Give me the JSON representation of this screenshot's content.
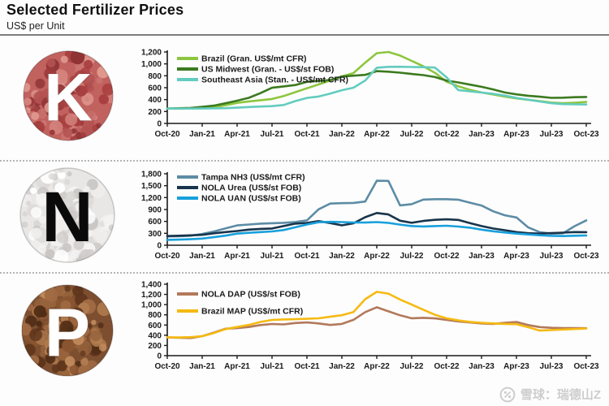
{
  "header": {
    "title": "Selected Fertilizer Prices",
    "subtitle": "US$ per Unit"
  },
  "watermark": {
    "source_text": "雪球：瑞德山Z"
  },
  "nutrients": [
    {
      "letter": "K",
      "name": "potash",
      "letter_color": "#ffffff",
      "base": "#c1625f",
      "spots": [
        "#a8403f",
        "#d4827c",
        "#b35251",
        "#e0988e",
        "#9c3a3c",
        "#cb7470",
        "#8f3335"
      ]
    },
    {
      "letter": "N",
      "name": "nitrogen",
      "letter_color": "#0a0a0a",
      "base": "#e9e7e6",
      "spots": [
        "#dcdad9",
        "#f4f3f2",
        "#cfccca",
        "#ffffff",
        "#d8d5d3",
        "#c9c5c3",
        "#efedec"
      ]
    },
    {
      "letter": "P",
      "name": "phosphate",
      "letter_color": "#ffffff",
      "base": "#7d4f30",
      "spots": [
        "#5e351b",
        "#a06a43",
        "#8a5531",
        "#c08a5c",
        "#4f2c15",
        "#96633c",
        "#b07b4e"
      ]
    }
  ],
  "chart_data": [
    {
      "type": "line",
      "panel": "K",
      "x_start": "Oct-20",
      "x_end": "Oct-23",
      "x_interval": "monthly",
      "x_tick_labels": [
        "Oct-20",
        "Jan-21",
        "Apr-21",
        "Jul-21",
        "Oct-21",
        "Jan-22",
        "Apr-22",
        "Jul-22",
        "Oct-22",
        "Jan-23",
        "Apr-23",
        "Jul-23",
        "Oct-23"
      ],
      "ylim": [
        0,
        1200
      ],
      "yticks": [
        0,
        200,
        400,
        600,
        800,
        1000,
        1200
      ],
      "grid": false,
      "legend_position": "top-left",
      "legend_y": 20,
      "legend_gap": 13,
      "series": [
        {
          "name": "Brazil (Gran. US$/mt CFR)",
          "color": "#8dc63f",
          "values": [
            250,
            248,
            250,
            255,
            270,
            305,
            345,
            370,
            390,
            410,
            460,
            525,
            590,
            655,
            720,
            790,
            845,
            1020,
            1180,
            1200,
            1140,
            1050,
            960,
            850,
            700,
            625,
            565,
            520,
            485,
            450,
            420,
            398,
            375,
            350,
            340,
            348,
            360
          ]
        },
        {
          "name": "US Midwest (Gran. - US$/st FOB)",
          "color": "#3c7a1f",
          "values": [
            250,
            255,
            260,
            278,
            298,
            338,
            382,
            430,
            508,
            598,
            622,
            645,
            698,
            714,
            728,
            788,
            802,
            815,
            878,
            868,
            852,
            830,
            812,
            778,
            718,
            688,
            652,
            615,
            572,
            520,
            488,
            465,
            448,
            430,
            432,
            440,
            445
          ]
        },
        {
          "name": "Southeast Asia (Stan. - US$/mt CFR)",
          "color": "#63ccbf",
          "values": [
            248,
            249,
            250,
            251,
            253,
            257,
            265,
            275,
            283,
            290,
            310,
            375,
            428,
            452,
            500,
            558,
            600,
            720,
            935,
            950,
            952,
            948,
            945,
            938,
            775,
            560,
            538,
            518,
            498,
            468,
            428,
            398,
            368,
            340,
            325,
            320,
            318
          ]
        }
      ]
    },
    {
      "type": "line",
      "panel": "N",
      "x_start": "Oct-20",
      "x_end": "Oct-23",
      "x_interval": "monthly",
      "x_tick_labels": [
        "Oct-20",
        "Jan-21",
        "Apr-21",
        "Jul-21",
        "Oct-21",
        "Jan-22",
        "Apr-22",
        "Jul-22",
        "Oct-22",
        "Jan-23",
        "Apr-23",
        "Jul-23",
        "Oct-23"
      ],
      "ylim": [
        0,
        1800
      ],
      "yticks": [
        0,
        300,
        600,
        900,
        1200,
        1500,
        1800
      ],
      "grid": false,
      "legend_position": "top-left",
      "legend_y": 16,
      "legend_gap": 13,
      "series": [
        {
          "name": "Tampa NH3 (US$/mt CFR)",
          "color": "#5d8ca5",
          "values": [
            220,
            228,
            240,
            285,
            345,
            425,
            500,
            522,
            545,
            555,
            565,
            585,
            625,
            905,
            1050,
            1060,
            1065,
            1100,
            1625,
            1620,
            1005,
            1035,
            1150,
            1160,
            1160,
            1148,
            1072,
            1000,
            855,
            755,
            700,
            452,
            330,
            292,
            300,
            480,
            625
          ]
        },
        {
          "name": "NOLA Urea (US$/st FOB)",
          "color": "#17344c",
          "values": [
            232,
            240,
            250,
            262,
            300,
            332,
            358,
            392,
            412,
            422,
            482,
            545,
            562,
            608,
            558,
            502,
            552,
            705,
            812,
            775,
            618,
            565,
            612,
            640,
            652,
            638,
            558,
            482,
            422,
            378,
            332,
            302,
            292,
            305,
            318,
            332,
            330
          ]
        },
        {
          "name": "NOLA UAN (US$/st FOB)",
          "color": "#18a0dc",
          "values": [
            135,
            142,
            152,
            168,
            202,
            242,
            292,
            312,
            332,
            348,
            382,
            452,
            522,
            578,
            590,
            582,
            572,
            570,
            582,
            562,
            520,
            482,
            472,
            482,
            490,
            470,
            442,
            392,
            352,
            322,
            292,
            272,
            252,
            238,
            232,
            240,
            245
          ]
        }
      ]
    },
    {
      "type": "line",
      "panel": "P",
      "x_start": "Oct-20",
      "x_end": "Oct-23",
      "x_interval": "monthly",
      "x_tick_labels": [
        "Oct-20",
        "Jan-21",
        "Apr-21",
        "Jul-21",
        "Oct-21",
        "Jan-22",
        "Apr-22",
        "Jul-22",
        "Oct-22",
        "Jan-23",
        "Apr-23",
        "Jul-23",
        "Oct-23"
      ],
      "ylim": [
        0,
        1400
      ],
      "yticks": [
        0,
        200,
        400,
        600,
        800,
        1000,
        1200,
        1400
      ],
      "grid": false,
      "legend_position": "top-left",
      "legend_y": 24,
      "legend_gap": 21,
      "series": [
        {
          "name": "NOLA DAP (US$/st FOB)",
          "color": "#b2795b",
          "values": [
            358,
            350,
            346,
            382,
            452,
            528,
            540,
            562,
            600,
            620,
            612,
            640,
            650,
            632,
            602,
            622,
            702,
            852,
            948,
            868,
            790,
            732,
            742,
            730,
            700,
            672,
            650,
            632,
            622,
            642,
            660,
            600,
            560,
            546,
            540,
            540,
            538
          ]
        },
        {
          "name": "Brazil MAP (US$/mt CFR)",
          "color": "#f5ba12",
          "values": [
            360,
            356,
            362,
            382,
            442,
            520,
            562,
            602,
            660,
            700,
            710,
            715,
            722,
            732,
            762,
            792,
            855,
            1105,
            1250,
            1215,
            1100,
            1000,
            900,
            800,
            732,
            692,
            662,
            645,
            632,
            622,
            618,
            558,
            492,
            502,
            512,
            522,
            532
          ]
        }
      ]
    }
  ]
}
